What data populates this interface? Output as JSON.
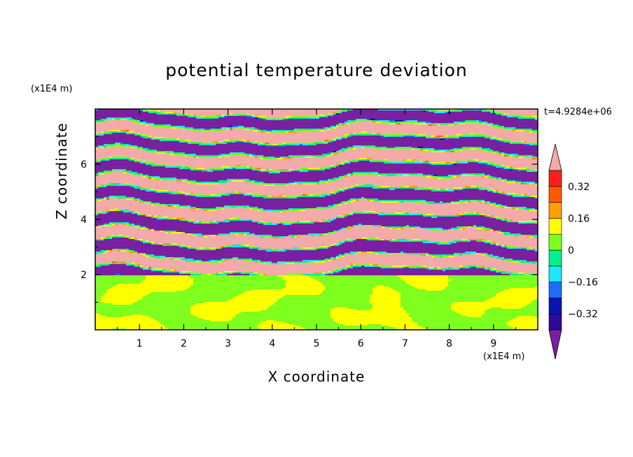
{
  "chart_data": {
    "type": "heatmap",
    "title": "potential temperature deviation",
    "xlabel": "X coordinate",
    "ylabel": "Z coordinate",
    "x_unit": "(x1E4 m)",
    "y_unit": "(x1E4 m)",
    "timestamp": "t=4.9284e+06",
    "xlim": [
      0,
      10
    ],
    "ylim": [
      0,
      8
    ],
    "x_ticks": [
      1,
      2,
      3,
      4,
      5,
      6,
      7,
      8,
      9
    ],
    "y_ticks": [
      2,
      4,
      6
    ],
    "colorbar": {
      "levels": [
        -0.4,
        -0.32,
        -0.24,
        -0.16,
        -0.08,
        0,
        0.08,
        0.16,
        0.24,
        0.32,
        0.4
      ],
      "labels": [
        0.32,
        0.16,
        0,
        -0.16,
        -0.32
      ],
      "label_text": [
        "0.32",
        "0.16",
        "0",
        "−0.16",
        "−0.32"
      ],
      "colors": [
        "#7a1fa2",
        "#2e0a9c",
        "#0a14b4",
        "#1e6cff",
        "#1ee6ff",
        "#00f08c",
        "#7fff1e",
        "#ffff00",
        "#ffa000",
        "#ff5a00",
        "#ff1e1e",
        "#f5aaaa"
      ],
      "extend": "both"
    },
    "regions": {
      "lower_layer_z": [
        0,
        2
      ],
      "lower_layer_values": [
        0,
        0.08
      ],
      "upper_layer_z": [
        2,
        8
      ],
      "upper_layer_band_values": [
        0.4,
        -0.4
      ]
    }
  }
}
